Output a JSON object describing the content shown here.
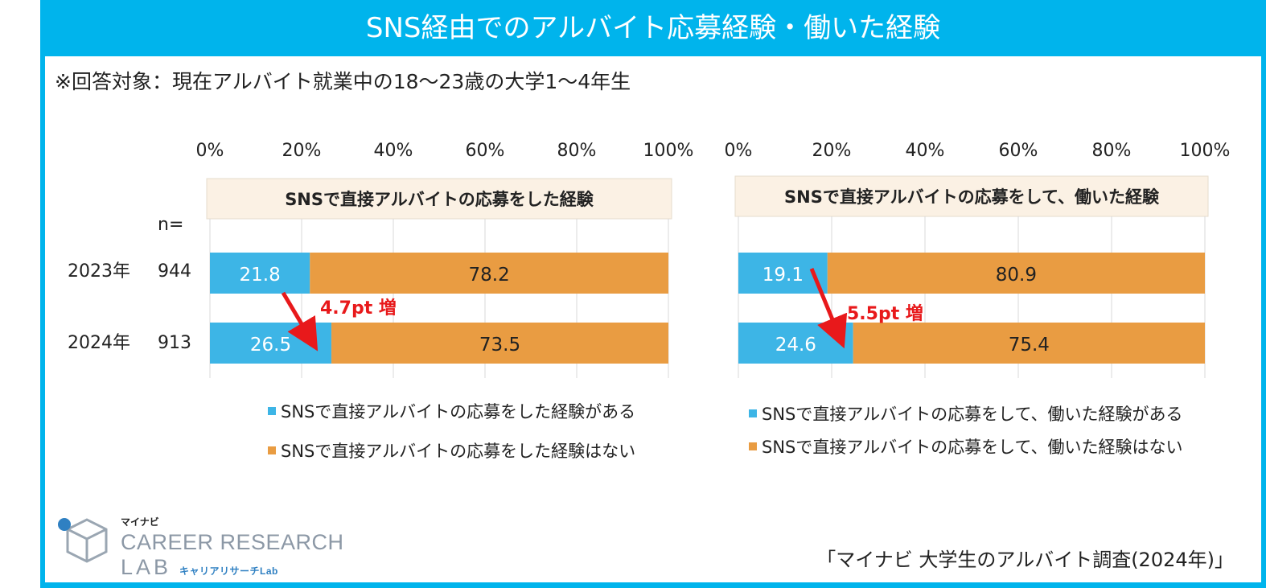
{
  "title": "SNS経由でのアルバイト応募経験・働いた経験",
  "note": "※回答対象：現在アルバイト就業中の18～23歳の大学1～4年生",
  "n_label": "n=",
  "rows": [
    {
      "year": "2023年",
      "n": "944"
    },
    {
      "year": "2024年",
      "n": "913"
    }
  ],
  "colors": {
    "frame": "#00b4ec",
    "yes": "#3db5e6",
    "no": "#e99c42",
    "header_bg": "#fbf1e4",
    "arrow": "#e8191b"
  },
  "chart_data": [
    {
      "type": "bar",
      "orientation": "horizontal-stacked-100",
      "title": "SNSで直接アルバイトの応募をした経験",
      "categories": [
        "2023年",
        "2024年"
      ],
      "series": [
        {
          "name": "SNSで直接アルバイトの応募をした経験がある",
          "values": [
            21.8,
            26.5
          ]
        },
        {
          "name": "SNSで直接アルバイトの応募をした経験はない",
          "values": [
            78.2,
            73.5
          ]
        }
      ],
      "xlim": [
        0,
        100
      ],
      "ticks": [
        "0%",
        "20%",
        "40%",
        "60%",
        "80%",
        "100%"
      ],
      "annotation": "4.7pt 増",
      "legend_position": "bottom"
    },
    {
      "type": "bar",
      "orientation": "horizontal-stacked-100",
      "title": "SNSで直接アルバイトの応募をして、働いた経験",
      "categories": [
        "2023年",
        "2024年"
      ],
      "series": [
        {
          "name": "SNSで直接アルバイトの応募をして、働いた経験がある",
          "values": [
            19.1,
            24.6
          ]
        },
        {
          "name": "SNSで直接アルバイトの応募をして、働いた経験はない",
          "values": [
            80.9,
            75.4
          ]
        }
      ],
      "xlim": [
        0,
        100
      ],
      "ticks": [
        "0%",
        "20%",
        "40%",
        "60%",
        "80%",
        "100%"
      ],
      "annotation": "5.5pt 増",
      "legend_position": "bottom"
    }
  ],
  "logo": {
    "kana": "マイナビ",
    "line1": "CAREER RESEARCH",
    "line2": "LAB",
    "sub": "キャリアリサーチLab"
  },
  "source": "「マイナビ 大学生のアルバイト調査(2024年)」"
}
